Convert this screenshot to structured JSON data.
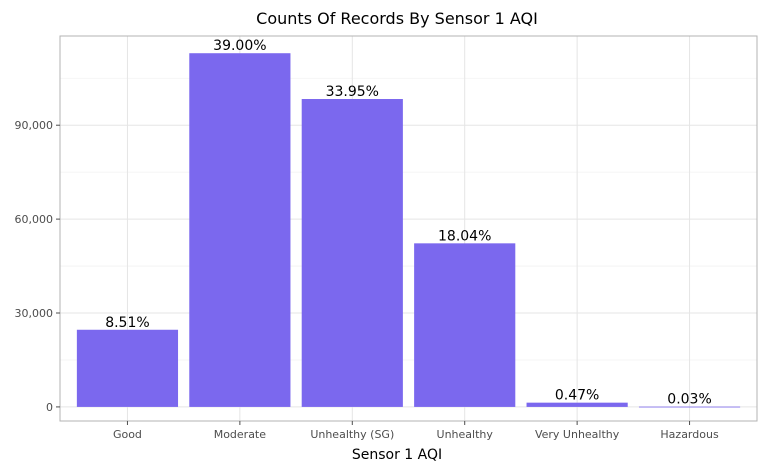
{
  "colors": {
    "bar": "#7b68ee",
    "grid_major": "#e5e5e5",
    "grid_minor": "#f2f2f2",
    "panel_border": "#b3b3b3",
    "tick_text": "#4d4d4d"
  },
  "chart_data": {
    "type": "bar",
    "title": "Counts Of Records By Sensor 1 AQI",
    "xlabel": "Sensor 1 AQI",
    "ylabel": "",
    "categories": [
      "Good",
      "Moderate",
      "Unhealthy (SG)",
      "Unhealthy",
      "Very Unhealthy",
      "Hazardous"
    ],
    "values": [
      24650,
      113000,
      98370,
      52260,
      1360,
      90
    ],
    "data_labels": [
      "8.51%",
      "39.00%",
      "33.95%",
      "18.04%",
      "0.47%",
      "0.03%"
    ],
    "ylim": [
      -4500,
      118500
    ],
    "yticks": [
      0,
      30000,
      60000,
      90000
    ],
    "ytick_labels": [
      "0",
      "30,000",
      "60,000",
      "90,000"
    ],
    "grid": true,
    "legend": "none"
  }
}
